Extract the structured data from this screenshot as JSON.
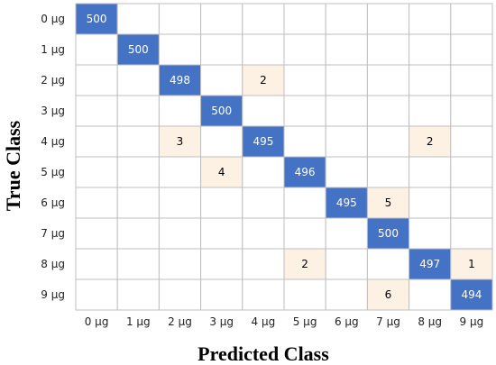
{
  "chart_data": {
    "type": "heatmap",
    "title": "",
    "xlabel": "Predicted Class",
    "ylabel": "True Class",
    "x_categories": [
      "0 µg",
      "1 µg",
      "2 µg",
      "3 µg",
      "4 µg",
      "5 µg",
      "6 µg",
      "7 µg",
      "8 µg",
      "9 µg"
    ],
    "y_categories": [
      "0 µg",
      "1 µg",
      "2 µg",
      "3 µg",
      "4 µg",
      "5 µg",
      "6 µg",
      "7 µg",
      "8 µg",
      "9 µg"
    ],
    "matrix": [
      [
        500,
        0,
        0,
        0,
        0,
        0,
        0,
        0,
        0,
        0
      ],
      [
        0,
        500,
        0,
        0,
        0,
        0,
        0,
        0,
        0,
        0
      ],
      [
        0,
        0,
        498,
        0,
        2,
        0,
        0,
        0,
        0,
        0
      ],
      [
        0,
        0,
        0,
        500,
        0,
        0,
        0,
        0,
        0,
        0
      ],
      [
        0,
        0,
        3,
        0,
        495,
        0,
        0,
        0,
        2,
        0
      ],
      [
        0,
        0,
        0,
        4,
        0,
        496,
        0,
        0,
        0,
        0
      ],
      [
        0,
        0,
        0,
        0,
        0,
        0,
        495,
        5,
        0,
        0
      ],
      [
        0,
        0,
        0,
        0,
        0,
        0,
        0,
        500,
        0,
        0
      ],
      [
        0,
        0,
        0,
        0,
        0,
        2,
        0,
        0,
        497,
        1
      ],
      [
        0,
        0,
        0,
        0,
        0,
        0,
        0,
        6,
        0,
        494
      ]
    ],
    "colors": {
      "diagonal": "#4472c4",
      "off_diagonal": "#fdf1e4",
      "empty": "#ffffff",
      "grid": "#bfbfbf",
      "diagonal_text": "#ffffff",
      "off_diagonal_text": "#000000"
    }
  }
}
